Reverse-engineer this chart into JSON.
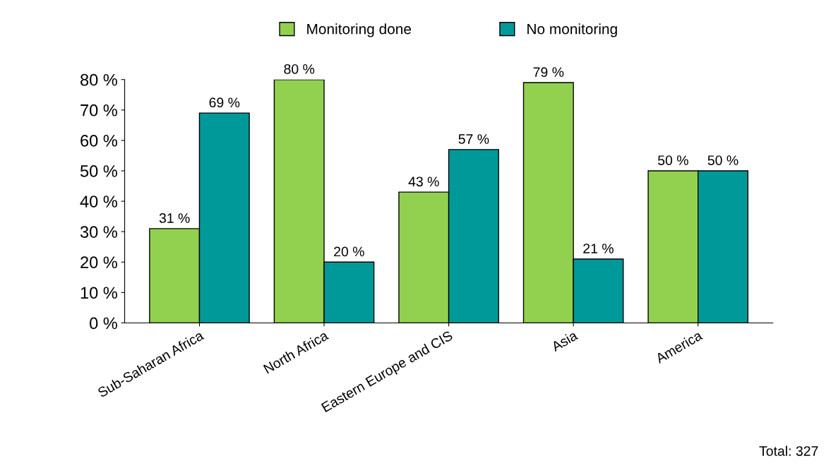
{
  "chart_data": {
    "type": "bar",
    "categories": [
      "Sub-Saharan Africa",
      "North Africa",
      "Eastern Europe and CIS",
      "Asia",
      "America"
    ],
    "series": [
      {
        "name": "Monitoring done",
        "color": "#92d050",
        "values": [
          31,
          80,
          43,
          79,
          50
        ],
        "value_labels": [
          "31 %",
          "80 %",
          "43 %",
          "79 %",
          "50 %"
        ]
      },
      {
        "name": "No monitoring",
        "color": "#009999",
        "values": [
          69,
          20,
          57,
          21,
          50
        ],
        "value_labels": [
          "69 %",
          "20 %",
          "57 %",
          "21 %",
          "50 %"
        ]
      }
    ],
    "ylim": [
      0,
      80
    ],
    "yticks": [
      {
        "value": 0,
        "label": "0 %"
      },
      {
        "value": 10,
        "label": "10 %"
      },
      {
        "value": 20,
        "label": "20 %"
      },
      {
        "value": 30,
        "label": "30 %"
      },
      {
        "value": 40,
        "label": "40 %"
      },
      {
        "value": 50,
        "label": "50 %"
      },
      {
        "value": 60,
        "label": "60 %"
      },
      {
        "value": 70,
        "label": "70 %"
      },
      {
        "value": 80,
        "label": "80 %"
      }
    ],
    "legend": "top",
    "grid": false,
    "annotations": [
      "Total: 327"
    ]
  }
}
